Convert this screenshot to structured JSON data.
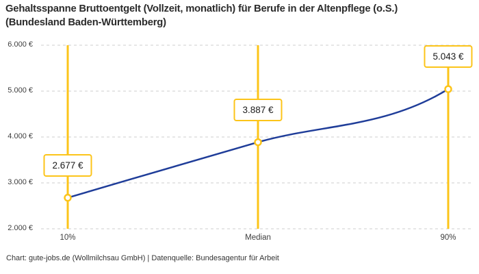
{
  "title": "Gehaltsspanne Bruttoentgelt (Vollzeit, monatlich) für Berufe in der Altenpflege (o.S.) (Bundesland Baden-Württemberg)",
  "footer": "Chart: gute-jobs.de (Wollmilchsau GmbH) | Datenquelle: Bundesagentur für Arbeit",
  "chart_data": {
    "type": "line",
    "categories": [
      "10%",
      "Median",
      "90%"
    ],
    "values": [
      2677,
      3887,
      5043
    ],
    "point_labels": [
      "2.677 €",
      "3.887 €",
      "5.043 €"
    ],
    "yticks": [
      {
        "value": 2000,
        "label": "2.000 €"
      },
      {
        "value": 3000,
        "label": "3.000 €"
      },
      {
        "value": 4000,
        "label": "4.000 €"
      },
      {
        "value": 5000,
        "label": "5.000 €"
      },
      {
        "value": 6000,
        "label": "6.000 €"
      }
    ],
    "ylim": [
      2000,
      6000
    ],
    "grid": "dashed horizontal gridlines, no axis lines",
    "legend": "none",
    "colors": {
      "line": "#1F3D99",
      "accent": "#FCC419",
      "grid": "#cccccc",
      "label_text": "#1a1a1a",
      "tick_text": "#3d3d3d"
    }
  }
}
